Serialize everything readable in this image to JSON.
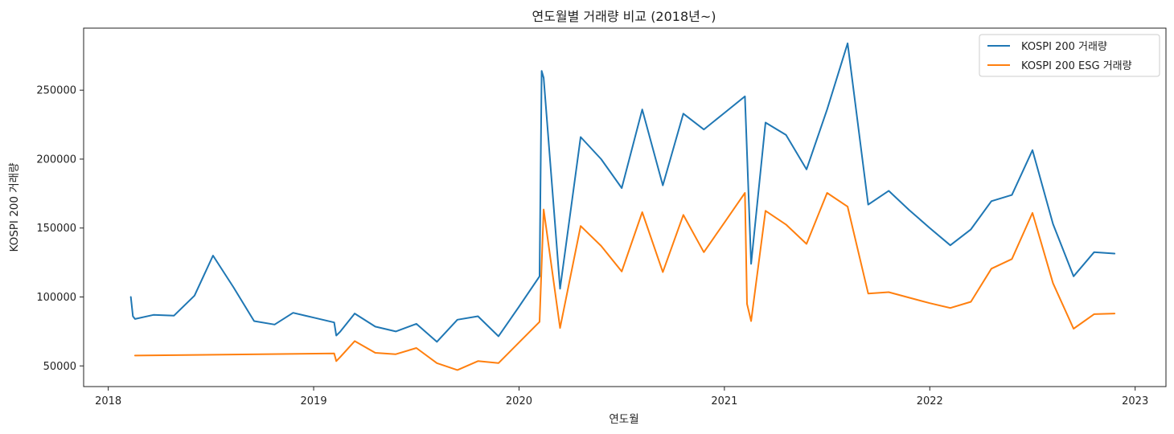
{
  "chart_data": {
    "type": "line",
    "title": "연도월별 거래량 비교 (2018년~)",
    "xlabel": "연도월",
    "ylabel": "KOSPI 200 거래량",
    "xlim": [
      2017.88,
      2023.15
    ],
    "ylim": [
      35000,
      295000
    ],
    "x_ticks": [
      "2018",
      "2019",
      "2020",
      "2021",
      "2022",
      "2023"
    ],
    "y_ticks": [
      "50000",
      "100000",
      "150000",
      "200000",
      "250000"
    ],
    "grid": false,
    "legend_position": "top-right",
    "series": [
      {
        "name": "KOSPI 200 거래량",
        "color": "#1f77b4",
        "points": [
          [
            2018.11,
            100000
          ],
          [
            2018.12,
            86000
          ],
          [
            2018.13,
            84000
          ],
          [
            2018.22,
            87000
          ],
          [
            2018.32,
            86500
          ],
          [
            2018.42,
            101000
          ],
          [
            2018.51,
            130000
          ],
          [
            2018.61,
            107000
          ],
          [
            2018.71,
            82500
          ],
          [
            2018.81,
            80000
          ],
          [
            2018.9,
            88500
          ],
          [
            2019.0,
            85000
          ],
          [
            2019.1,
            81500
          ],
          [
            2019.11,
            72000
          ],
          [
            2019.13,
            75000
          ],
          [
            2019.2,
            88000
          ],
          [
            2019.3,
            78500
          ],
          [
            2019.4,
            75000
          ],
          [
            2019.5,
            80500
          ],
          [
            2019.6,
            67500
          ],
          [
            2019.7,
            83500
          ],
          [
            2019.8,
            86000
          ],
          [
            2019.9,
            71500
          ],
          [
            2020.0,
            93000
          ],
          [
            2020.1,
            115000
          ],
          [
            2020.11,
            264000
          ],
          [
            2020.12,
            259000
          ],
          [
            2020.2,
            106000
          ],
          [
            2020.3,
            216000
          ],
          [
            2020.4,
            200000
          ],
          [
            2020.5,
            179000
          ],
          [
            2020.6,
            236000
          ],
          [
            2020.7,
            181000
          ],
          [
            2020.8,
            233000
          ],
          [
            2020.9,
            221500
          ],
          [
            2021.0,
            233500
          ],
          [
            2021.1,
            245500
          ],
          [
            2021.13,
            124000
          ],
          [
            2021.2,
            226500
          ],
          [
            2021.3,
            217500
          ],
          [
            2021.4,
            192500
          ],
          [
            2021.5,
            236000
          ],
          [
            2021.6,
            284000
          ],
          [
            2021.7,
            167000
          ],
          [
            2021.8,
            177000
          ],
          [
            2021.9,
            163000
          ],
          [
            2022.0,
            150000
          ],
          [
            2022.1,
            137500
          ],
          [
            2022.2,
            149000
          ],
          [
            2022.3,
            169500
          ],
          [
            2022.4,
            174000
          ],
          [
            2022.5,
            206500
          ],
          [
            2022.6,
            153000
          ],
          [
            2022.7,
            115000
          ],
          [
            2022.8,
            132500
          ],
          [
            2022.9,
            131500
          ]
        ]
      },
      {
        "name": "KOSPI 200 ESG 거래량",
        "color": "#ff7f0e",
        "points": [
          [
            2018.13,
            57500
          ],
          [
            2019.1,
            59000
          ],
          [
            2019.11,
            53500
          ],
          [
            2019.13,
            56500
          ],
          [
            2019.2,
            68000
          ],
          [
            2019.3,
            59500
          ],
          [
            2019.4,
            58500
          ],
          [
            2019.5,
            63000
          ],
          [
            2019.6,
            52000
          ],
          [
            2019.7,
            47000
          ],
          [
            2019.8,
            53500
          ],
          [
            2019.9,
            52000
          ],
          [
            2020.0,
            67000
          ],
          [
            2020.1,
            82000
          ],
          [
            2020.12,
            163500
          ],
          [
            2020.2,
            77500
          ],
          [
            2020.3,
            151500
          ],
          [
            2020.4,
            137000
          ],
          [
            2020.5,
            118500
          ],
          [
            2020.6,
            161500
          ],
          [
            2020.7,
            118000
          ],
          [
            2020.8,
            159500
          ],
          [
            2020.9,
            132500
          ],
          [
            2021.0,
            154000
          ],
          [
            2021.1,
            175500
          ],
          [
            2021.11,
            95000
          ],
          [
            2021.13,
            82500
          ],
          [
            2021.2,
            162500
          ],
          [
            2021.3,
            152500
          ],
          [
            2021.4,
            138500
          ],
          [
            2021.5,
            175500
          ],
          [
            2021.6,
            165500
          ],
          [
            2021.7,
            102500
          ],
          [
            2021.8,
            103500
          ],
          [
            2021.9,
            99500
          ],
          [
            2022.0,
            95500
          ],
          [
            2022.1,
            92000
          ],
          [
            2022.2,
            96500
          ],
          [
            2022.3,
            120500
          ],
          [
            2022.4,
            127500
          ],
          [
            2022.5,
            161000
          ],
          [
            2022.6,
            110000
          ],
          [
            2022.7,
            77000
          ],
          [
            2022.8,
            87500
          ],
          [
            2022.9,
            88000
          ]
        ]
      }
    ]
  }
}
